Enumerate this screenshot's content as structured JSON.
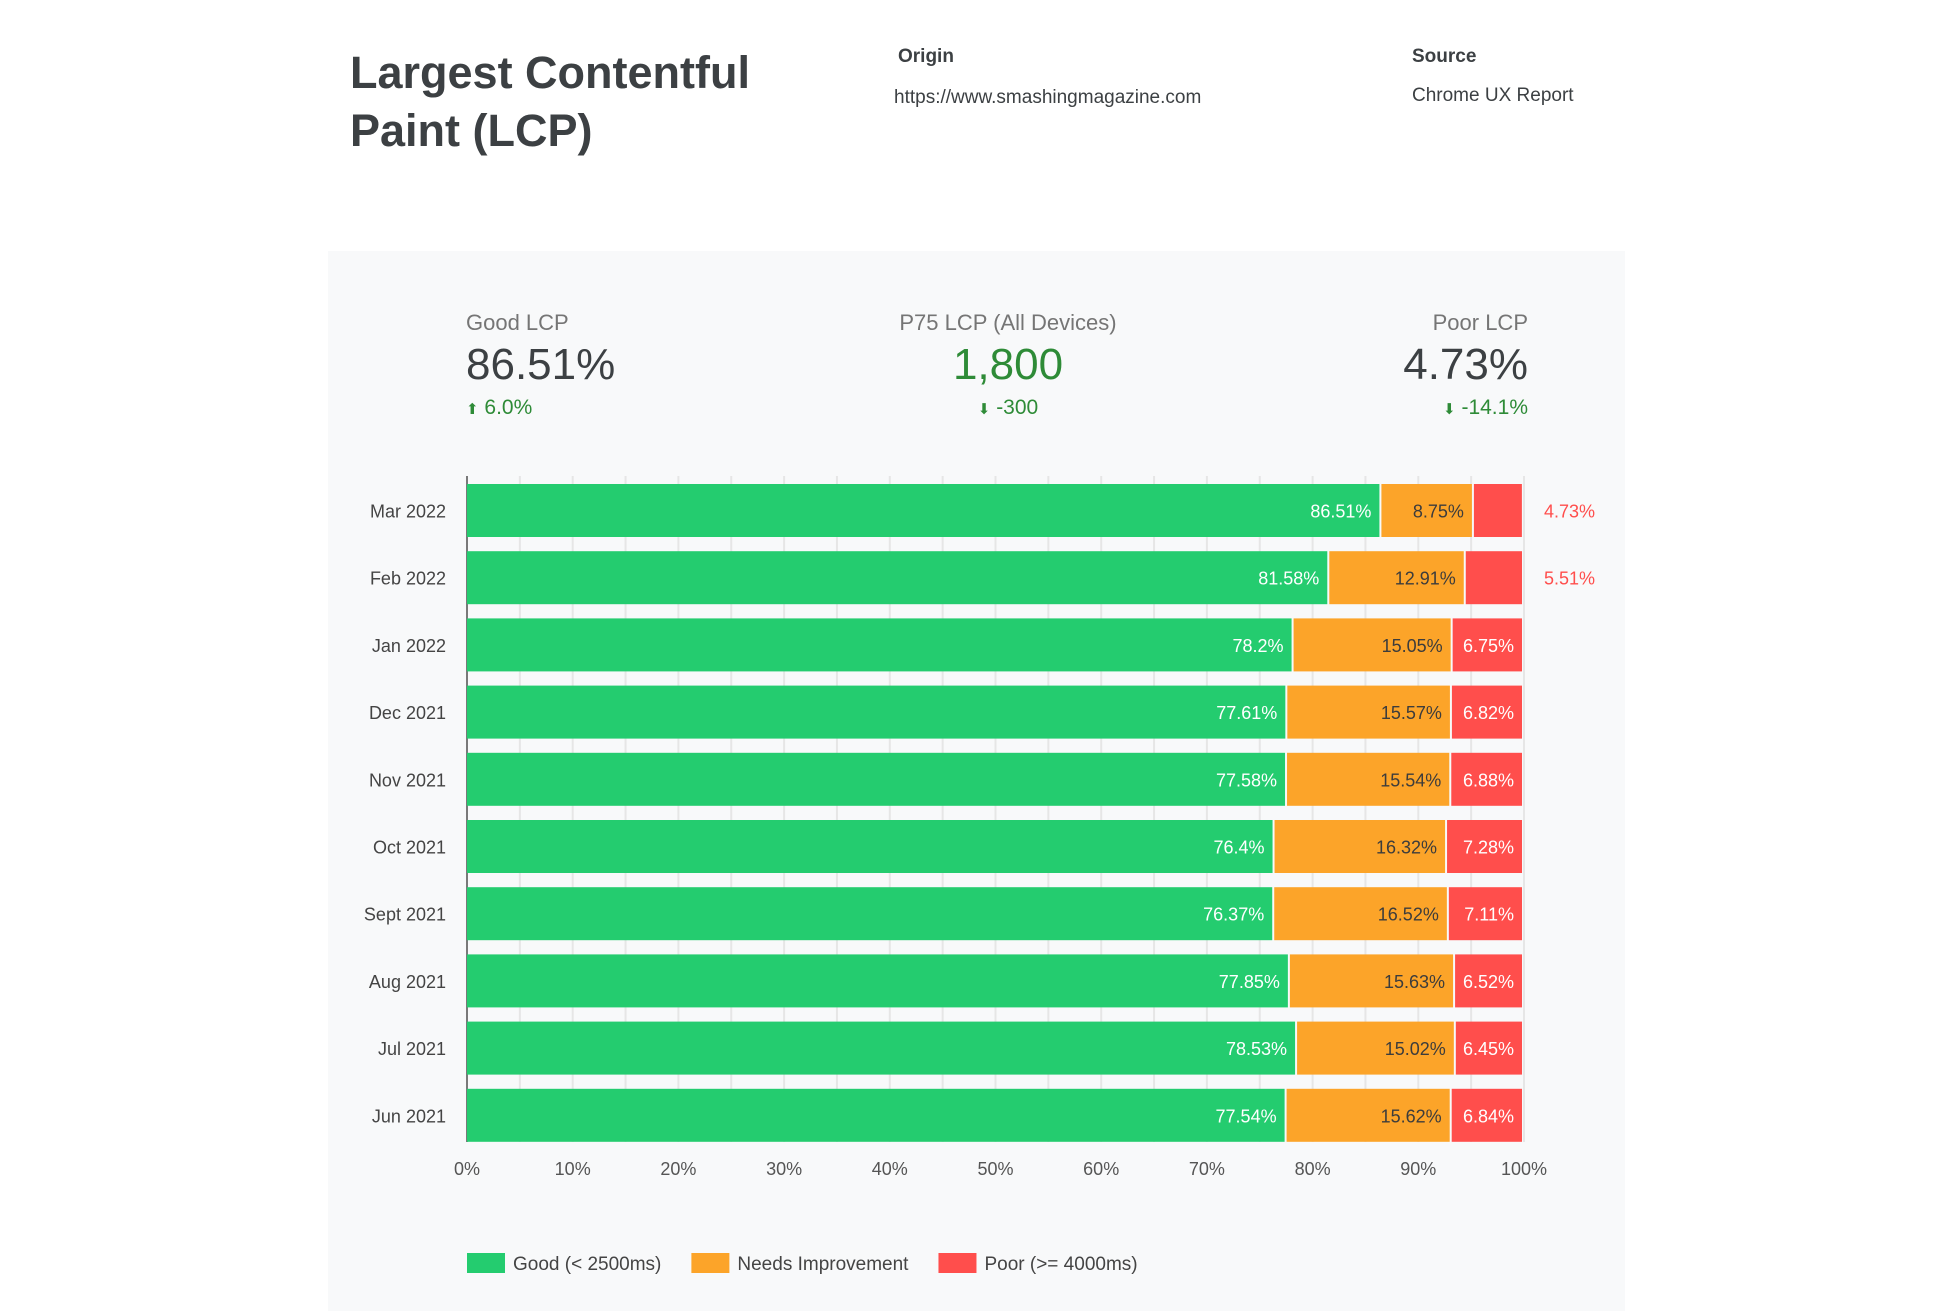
{
  "header": {
    "title": "Largest Contentful Paint (LCP)",
    "origin_label": "Origin",
    "origin_value": "https://www.smashingmagazine.com",
    "source_label": "Source",
    "source_value": "Chrome UX Report"
  },
  "kpis": [
    {
      "label": "Good LCP",
      "value": "86.51%",
      "change": "6.0%",
      "direction": "up",
      "value_color": "#3c4043"
    },
    {
      "label": "P75 LCP (All Devices)",
      "value": "1,800",
      "change": "-300",
      "direction": "down",
      "value_color": "#2e8b37"
    },
    {
      "label": "Poor LCP",
      "value": "4.73%",
      "change": "-14.1%",
      "direction": "down",
      "value_color": "#3c4043"
    }
  ],
  "chart_data": {
    "type": "bar",
    "orientation": "horizontal",
    "stacked": true,
    "categories": [
      "Mar 2022",
      "Feb 2022",
      "Jan 2022",
      "Dec 2021",
      "Nov 2021",
      "Oct 2021",
      "Sept 2021",
      "Aug 2021",
      "Jul 2021",
      "Jun 2021"
    ],
    "series": [
      {
        "name": "Good (< 2500ms)",
        "color": "#24cc6f",
        "values": [
          86.51,
          81.58,
          78.2,
          77.61,
          77.58,
          76.4,
          76.37,
          77.85,
          78.53,
          77.54
        ]
      },
      {
        "name": "Needs Improvement",
        "color": "#fca429",
        "values": [
          8.75,
          12.91,
          15.05,
          15.57,
          15.54,
          16.32,
          16.52,
          15.63,
          15.02,
          15.62
        ]
      },
      {
        "name": "Poor (>= 4000ms)",
        "color": "#ff4e4c",
        "values": [
          4.73,
          5.51,
          6.75,
          6.82,
          6.88,
          7.28,
          7.11,
          6.52,
          6.45,
          6.84
        ]
      }
    ],
    "xlim": [
      0,
      100
    ],
    "xticks": [
      "0%",
      "10%",
      "20%",
      "30%",
      "40%",
      "50%",
      "60%",
      "70%",
      "80%",
      "90%",
      "100%"
    ],
    "grid": true,
    "legend": "bottom-left"
  }
}
